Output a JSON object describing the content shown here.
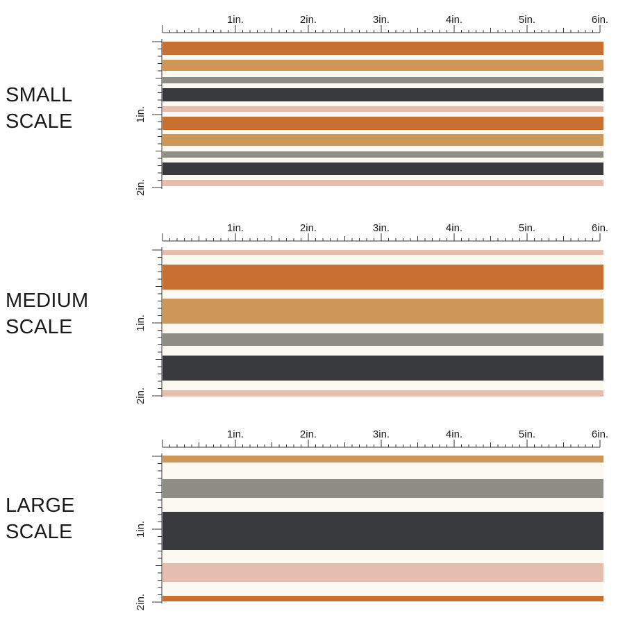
{
  "colors": {
    "orange": "#c86f32",
    "tan": "#cf9757",
    "sage_gray": "#8e8e85",
    "charcoal": "#393a3e",
    "blush": "#e6beb0",
    "cream": "#fcf9f3"
  },
  "ruler": {
    "horizontal_labels": [
      "1in.",
      "2in.",
      "3in.",
      "4in.",
      "5in.",
      "6in."
    ],
    "vertical_labels": [
      "1in.",
      "2in."
    ]
  },
  "panels": [
    {
      "label": "SMALL\nSCALE",
      "stripes": [
        {
          "color": "orange"
        },
        {
          "color": "tan"
        },
        {
          "color": "sage_gray"
        },
        {
          "color": "charcoal"
        },
        {
          "color": "blush"
        },
        {
          "color": "orange"
        },
        {
          "color": "tan"
        },
        {
          "color": "sage_gray"
        },
        {
          "color": "charcoal"
        },
        {
          "color": "blush"
        }
      ]
    },
    {
      "label": "MEDIUM\nSCALE",
      "stripes": [
        {
          "color": "blush"
        },
        {
          "color": "orange"
        },
        {
          "color": "tan"
        },
        {
          "color": "sage_gray"
        },
        {
          "color": "charcoal"
        },
        {
          "color": "blush"
        }
      ]
    },
    {
      "label": "LARGE\nSCALE",
      "stripes": [
        {
          "color": "tan"
        },
        {
          "color": "sage_gray"
        },
        {
          "color": "charcoal"
        },
        {
          "color": "blush"
        },
        {
          "color": "orange"
        }
      ]
    }
  ]
}
